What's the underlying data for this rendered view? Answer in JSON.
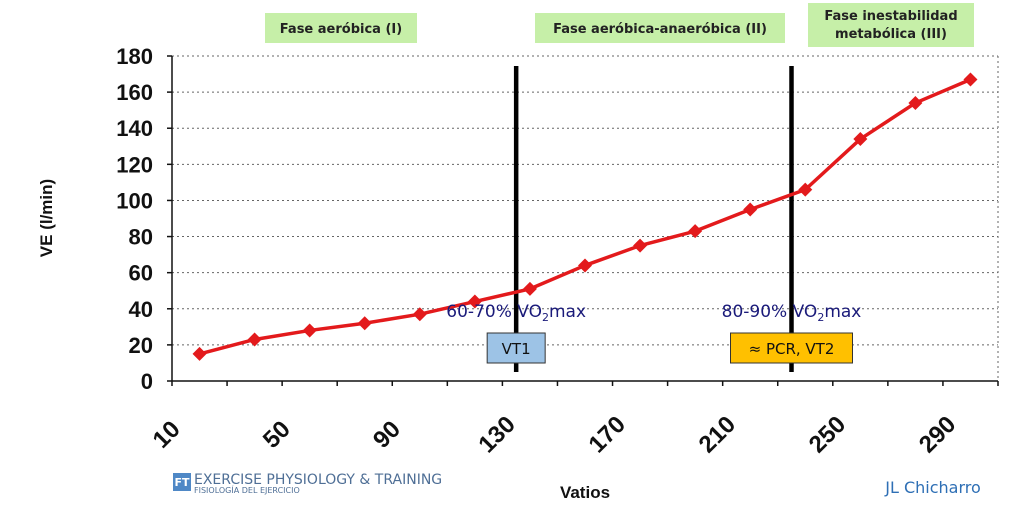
{
  "chart_data": {
    "type": "line",
    "ylabel": "VE (l/min)",
    "xlabel": "Vatios",
    "ylim": [
      0,
      180
    ],
    "yticks": [
      0,
      20,
      40,
      60,
      80,
      100,
      120,
      140,
      160,
      180
    ],
    "xlim": [
      10,
      310
    ],
    "xticks": [
      10,
      50,
      90,
      130,
      170,
      210,
      250,
      290
    ],
    "grid": "horizontal dotted",
    "series": [
      {
        "name": "VE",
        "color": "#e31a1c",
        "x": [
          20,
          40,
          60,
          80,
          100,
          120,
          140,
          160,
          180,
          200,
          220,
          240,
          260,
          280,
          300
        ],
        "y": [
          15,
          23,
          28,
          32,
          37,
          44,
          51,
          64,
          75,
          83,
          95,
          106,
          134,
          154,
          167
        ]
      }
    ],
    "thresholds": [
      {
        "x": 135,
        "label": "VT1",
        "box_color": "#9dc3e6",
        "range_label": "60-70%",
        "vo2_prefix": "VO",
        "vo2_sub": "2",
        "vo2_suffix": "max"
      },
      {
        "x": 235,
        "label": "≈ PCR, VT2",
        "box_color": "#ffc000",
        "range_label": "80-90%",
        "vo2_prefix": "VO",
        "vo2_sub": "2",
        "vo2_suffix": "max"
      }
    ],
    "phases": [
      {
        "lines": [
          "Fase aeróbica (I)"
        ]
      },
      {
        "lines": [
          "Fase aeróbica-anaeróbica (II)"
        ]
      },
      {
        "lines": [
          "Fase inestabilidad",
          "metabólica (III)"
        ]
      }
    ],
    "phase_color": "#c6efa8"
  },
  "logo": {
    "mark": "FT",
    "title": "EXERCISE PHYSIOLOGY & TRAINING",
    "subtitle": "FISIOLOGÍA DEL EJERCICIO"
  },
  "author": "JL Chicharro"
}
